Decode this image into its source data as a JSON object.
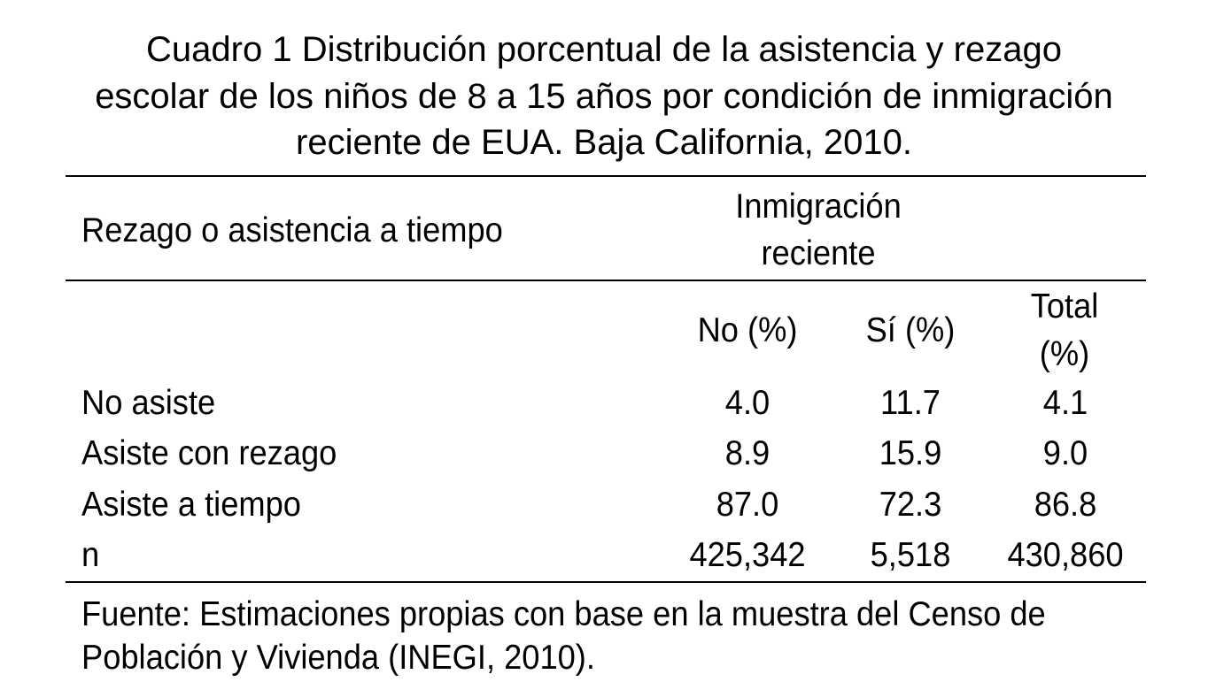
{
  "title": {
    "lines": [
      "Cuadro 1 Distribución porcentual de la asistencia y rezago",
      "escolar de los niños de 8 a 15 años por condición de inmigración",
      "reciente de EUA. Baja California, 2010."
    ]
  },
  "table": {
    "row_header": "Rezago o asistencia a tiempo",
    "group_header": [
      "Inmigración",
      "reciente"
    ],
    "columns": [
      {
        "line1": "No (%)",
        "line2": ""
      },
      {
        "line1": "Sí (%)",
        "line2": ""
      },
      {
        "line1": "Total",
        "line2": "(%)"
      }
    ],
    "rows": [
      {
        "label": "No asiste",
        "values": [
          "4.0",
          "11.7",
          "4.1"
        ]
      },
      {
        "label": "Asiste con rezago",
        "values": [
          "8.9",
          "15.9",
          "9.0"
        ]
      },
      {
        "label": "Asiste a tiempo",
        "values": [
          "87.0",
          "72.3",
          "86.8"
        ]
      },
      {
        "label": "n",
        "values": [
          "425,342",
          "5,518",
          "430,860"
        ]
      }
    ]
  },
  "footer": {
    "lines": [
      "Fuente: Estimaciones propias con base en la muestra del Censo de",
      "Población y Vivienda (INEGI, 2010)."
    ]
  }
}
